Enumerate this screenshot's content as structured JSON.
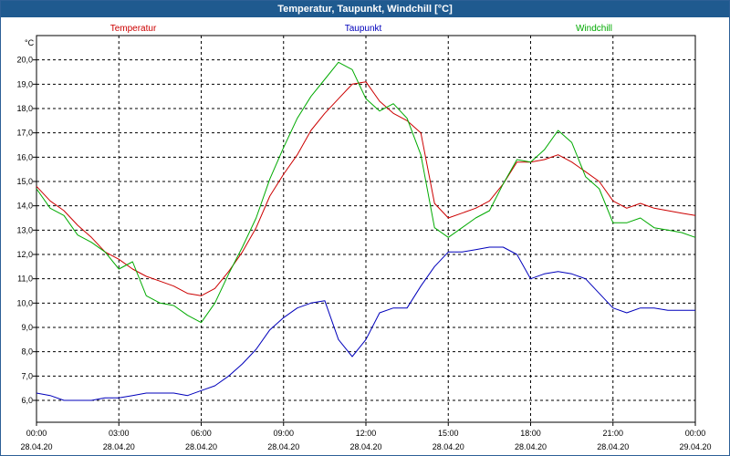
{
  "window": {
    "title": "Temperatur, Taupunkt, Windchill [°C]"
  },
  "chart_data": {
    "type": "line",
    "title": "Temperatur, Taupunkt, Windchill [°C]",
    "ylabel": "°C",
    "xlabel": "",
    "ylim": [
      5.1,
      21.0
    ],
    "xlim": [
      0,
      24
    ],
    "grid": true,
    "legend": "top",
    "y_ticks": [
      "6,0",
      "7,0",
      "8,0",
      "9,0",
      "10,0",
      "11,0",
      "12,0",
      "13,0",
      "14,0",
      "15,0",
      "16,0",
      "17,0",
      "18,0",
      "19,0",
      "20,0"
    ],
    "x_ticks": [
      {
        "time": "00:00",
        "date": "28.04.20"
      },
      {
        "time": "03:00",
        "date": "28.04.20"
      },
      {
        "time": "06:00",
        "date": "28.04.20"
      },
      {
        "time": "09:00",
        "date": "28.04.20"
      },
      {
        "time": "12:00",
        "date": "28.04.20"
      },
      {
        "time": "15:00",
        "date": "28.04.20"
      },
      {
        "time": "18:00",
        "date": "28.04.20"
      },
      {
        "time": "21:00",
        "date": "28.04.20"
      },
      {
        "time": "00:00",
        "date": "29.04.20"
      }
    ],
    "series": [
      {
        "name": "Temperatur",
        "color": "#cc0000",
        "x": [
          0,
          0.5,
          1,
          1.5,
          2,
          2.5,
          3,
          3.5,
          4,
          4.5,
          5,
          5.5,
          6,
          6.5,
          7,
          7.5,
          8,
          8.5,
          9,
          9.5,
          10,
          10.5,
          11,
          11.5,
          12,
          12.5,
          13,
          13.5,
          14,
          14.5,
          15,
          15.5,
          16,
          16.5,
          17,
          17.5,
          18,
          18.5,
          19,
          19.5,
          20,
          20.5,
          21,
          21.5,
          22,
          22.5,
          23,
          23.5,
          24
        ],
        "values": [
          14.8,
          14.2,
          13.8,
          13.2,
          12.7,
          12.1,
          11.8,
          11.4,
          11.1,
          10.9,
          10.7,
          10.4,
          10.3,
          10.6,
          11.3,
          12.1,
          13.1,
          14.4,
          15.3,
          16.1,
          17.1,
          17.8,
          18.4,
          19.0,
          19.1,
          18.3,
          17.8,
          17.5,
          17.0,
          14.1,
          13.5,
          13.7,
          13.9,
          14.2,
          14.9,
          15.8,
          15.8,
          15.9,
          16.1,
          15.8,
          15.4,
          15.0,
          14.2,
          13.9,
          14.1,
          13.9,
          13.8,
          13.7,
          13.6
        ]
      },
      {
        "name": "Taupunkt",
        "color": "#0000bb",
        "x": [
          0,
          0.5,
          1,
          1.5,
          2,
          2.5,
          3,
          3.5,
          4,
          4.5,
          5,
          5.5,
          6,
          6.5,
          7,
          7.5,
          8,
          8.5,
          9,
          9.5,
          10,
          10.5,
          11,
          11.5,
          12,
          12.5,
          13,
          13.5,
          14,
          14.5,
          15,
          15.5,
          16,
          16.5,
          17,
          17.5,
          18,
          18.5,
          19,
          19.5,
          20,
          20.5,
          21,
          21.5,
          22,
          22.5,
          23,
          23.5,
          24
        ],
        "values": [
          6.3,
          6.2,
          6.0,
          6.0,
          6.0,
          6.1,
          6.1,
          6.2,
          6.3,
          6.3,
          6.3,
          6.2,
          6.4,
          6.6,
          7.0,
          7.5,
          8.1,
          8.9,
          9.4,
          9.8,
          10.0,
          10.1,
          8.5,
          7.8,
          8.5,
          9.6,
          9.8,
          9.8,
          10.7,
          11.5,
          12.1,
          12.1,
          12.2,
          12.3,
          12.3,
          12.0,
          11.0,
          11.2,
          11.3,
          11.2,
          11.0,
          10.4,
          9.8,
          9.6,
          9.8,
          9.8,
          9.7,
          9.7,
          9.7
        ]
      },
      {
        "name": "Windchill",
        "color": "#00aa00",
        "x": [
          0,
          0.5,
          1,
          1.5,
          2,
          2.5,
          3,
          3.5,
          4,
          4.5,
          5,
          5.5,
          6,
          6.5,
          7,
          7.5,
          8,
          8.5,
          9,
          9.5,
          10,
          10.5,
          11,
          11.5,
          12,
          12.5,
          13,
          13.5,
          14,
          14.5,
          15,
          15.5,
          16,
          16.5,
          17,
          17.5,
          18,
          18.5,
          19,
          19.5,
          20,
          20.5,
          21,
          21.5,
          22,
          22.5,
          23,
          23.5,
          24
        ],
        "values": [
          14.7,
          13.9,
          13.6,
          12.8,
          12.5,
          12.1,
          11.4,
          11.7,
          10.3,
          10.0,
          9.9,
          9.5,
          9.2,
          10.0,
          11.2,
          12.3,
          13.5,
          15.1,
          16.4,
          17.6,
          18.5,
          19.2,
          19.9,
          19.6,
          18.4,
          17.9,
          18.2,
          17.6,
          16.1,
          13.1,
          12.7,
          13.1,
          13.5,
          13.8,
          14.9,
          15.9,
          15.8,
          16.3,
          17.1,
          16.6,
          15.2,
          14.7,
          13.3,
          13.3,
          13.5,
          13.1,
          13.0,
          12.9,
          12.7
        ]
      }
    ]
  }
}
